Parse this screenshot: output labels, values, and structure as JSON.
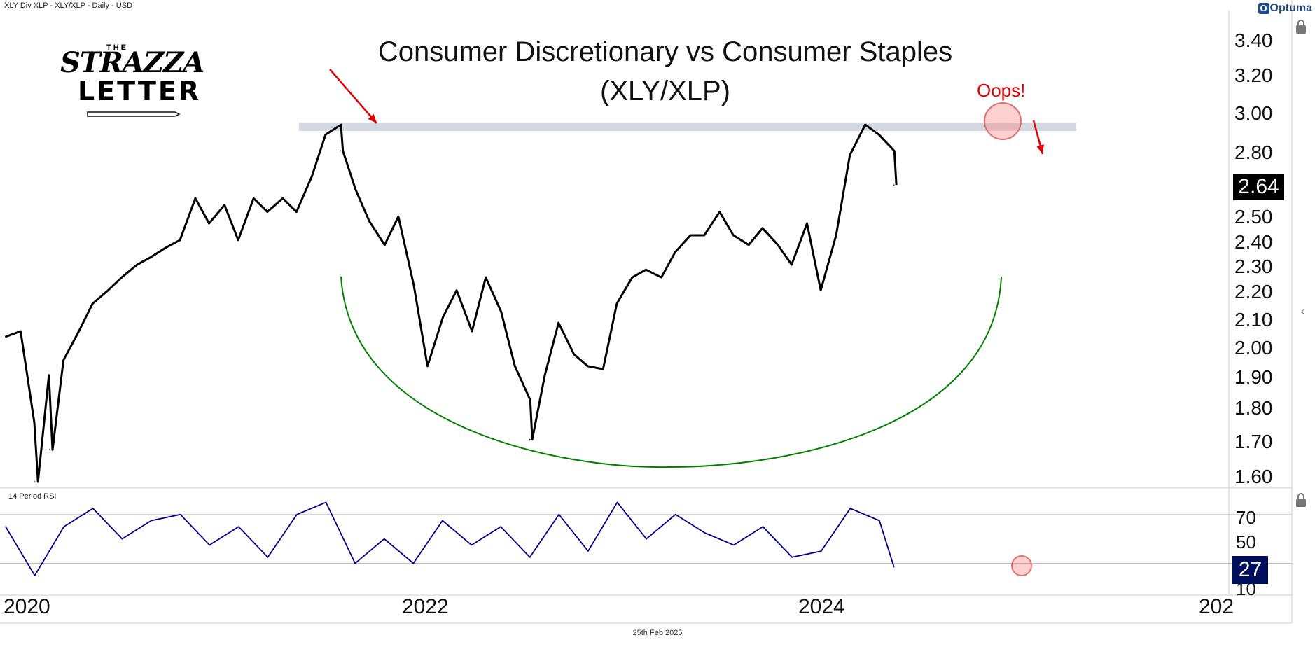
{
  "header": "XLY Div XLP - XLY/XLP - Daily - USD",
  "brand": "Optuma",
  "logo": {
    "the": "THE",
    "name1": "STRAZZA",
    "name2": "LETTER"
  },
  "annotation": "Oops!",
  "footer_date": "25th Feb 2025",
  "colors": {
    "price": "#000000",
    "rsi": "#00008b",
    "arc": "#008000",
    "arrow": "#e00000",
    "resistance": "#b4bfcc"
  },
  "chart_data": [
    {
      "type": "line",
      "title": "Consumer Discretionary vs Consumer Staples",
      "subtitle": "(XLY/XLP)",
      "series": [
        {
          "name": "XLY/XLP",
          "points": [
            [
              "2020-01",
              2.03
            ],
            [
              "2020-02",
              2.05
            ],
            [
              "2020-03",
              1.75
            ],
            [
              "2020-03",
              1.58
            ],
            [
              "2020-04",
              1.9
            ],
            [
              "2020-04",
              1.67
            ],
            [
              "2020-05",
              1.95
            ],
            [
              "2020-06",
              2.05
            ],
            [
              "2020-07",
              2.15
            ],
            [
              "2020-08",
              2.2
            ],
            [
              "2020-09",
              2.25
            ],
            [
              "2020-10",
              2.3
            ],
            [
              "2020-11",
              2.33
            ],
            [
              "2020-12",
              2.37
            ],
            [
              "2021-01",
              2.4
            ],
            [
              "2021-02",
              2.58
            ],
            [
              "2021-03",
              2.47
            ],
            [
              "2021-04",
              2.55
            ],
            [
              "2021-05",
              2.4
            ],
            [
              "2021-06",
              2.58
            ],
            [
              "2021-07",
              2.52
            ],
            [
              "2021-08",
              2.58
            ],
            [
              "2021-09",
              2.52
            ],
            [
              "2021-10",
              2.68
            ],
            [
              "2021-11",
              2.88
            ],
            [
              "2021-12",
              2.93
            ],
            [
              "2021-12",
              2.8
            ],
            [
              "2022-01",
              2.62
            ],
            [
              "2022-02",
              2.48
            ],
            [
              "2022-03",
              2.38
            ],
            [
              "2022-04",
              2.5
            ],
            [
              "2022-05",
              2.22
            ],
            [
              "2022-06",
              1.93
            ],
            [
              "2022-07",
              2.1
            ],
            [
              "2022-08",
              2.2
            ],
            [
              "2022-09",
              2.05
            ],
            [
              "2022-10",
              2.25
            ],
            [
              "2022-11",
              2.12
            ],
            [
              "2022-12",
              1.93
            ],
            [
              "2023-01",
              1.82
            ],
            [
              "2023-01",
              1.7
            ],
            [
              "2023-02",
              1.9
            ],
            [
              "2023-03",
              2.08
            ],
            [
              "2023-04",
              1.97
            ],
            [
              "2023-05",
              1.93
            ],
            [
              "2023-06",
              1.92
            ],
            [
              "2023-07",
              2.15
            ],
            [
              "2023-08",
              2.25
            ],
            [
              "2023-09",
              2.28
            ],
            [
              "2023-10",
              2.25
            ],
            [
              "2023-11",
              2.35
            ],
            [
              "2023-12",
              2.42
            ],
            [
              "2024-01",
              2.42
            ],
            [
              "2024-02",
              2.52
            ],
            [
              "2024-03",
              2.42
            ],
            [
              "2024-04",
              2.38
            ],
            [
              "2024-05",
              2.45
            ],
            [
              "2024-06",
              2.38
            ],
            [
              "2024-07",
              2.3
            ],
            [
              "2024-08",
              2.47
            ],
            [
              "2024-09",
              2.2
            ],
            [
              "2024-10",
              2.42
            ],
            [
              "2024-11",
              2.78
            ],
            [
              "2024-12",
              2.93
            ],
            [
              "2025-01",
              2.88
            ],
            [
              "2025-02",
              2.8
            ],
            [
              "2025-02",
              2.64
            ]
          ]
        }
      ],
      "last_value": "2.64",
      "resistance": 2.92,
      "yticks": [
        "3.40",
        "3.20",
        "3.00",
        "2.80",
        "2.50",
        "2.40",
        "2.30",
        "2.20",
        "2.10",
        "2.00",
        "1.90",
        "1.80",
        "1.70",
        "1.60"
      ],
      "ylim": [
        1.58,
        3.54
      ],
      "yscale": "log",
      "xticks": [
        "2020",
        "2022",
        "2024",
        "202"
      ]
    },
    {
      "type": "line",
      "title": "14 Period RSI",
      "series": [
        {
          "name": "14 Period RSI",
          "points": [
            [
              "2020-01",
              60
            ],
            [
              "2020-03",
              20
            ],
            [
              "2020-05",
              60
            ],
            [
              "2020-07",
              75
            ],
            [
              "2020-09",
              50
            ],
            [
              "2020-11",
              65
            ],
            [
              "2021-01",
              70
            ],
            [
              "2021-03",
              45
            ],
            [
              "2021-05",
              60
            ],
            [
              "2021-07",
              35
            ],
            [
              "2021-09",
              70
            ],
            [
              "2021-11",
              80
            ],
            [
              "2022-01",
              30
            ],
            [
              "2022-03",
              50
            ],
            [
              "2022-05",
              30
            ],
            [
              "2022-07",
              65
            ],
            [
              "2022-09",
              45
            ],
            [
              "2022-11",
              60
            ],
            [
              "2023-01",
              35
            ],
            [
              "2023-03",
              70
            ],
            [
              "2023-05",
              40
            ],
            [
              "2023-07",
              80
            ],
            [
              "2023-09",
              50
            ],
            [
              "2023-11",
              70
            ],
            [
              "2024-01",
              55
            ],
            [
              "2024-03",
              45
            ],
            [
              "2024-05",
              60
            ],
            [
              "2024-07",
              35
            ],
            [
              "2024-09",
              40
            ],
            [
              "2024-11",
              75
            ],
            [
              "2025-01",
              65
            ],
            [
              "2025-02",
              27
            ]
          ]
        }
      ],
      "last_value": "27",
      "levels": [
        70,
        30
      ],
      "yticks": [
        "70",
        "50",
        "10"
      ],
      "ylim": [
        5,
        90
      ]
    }
  ]
}
